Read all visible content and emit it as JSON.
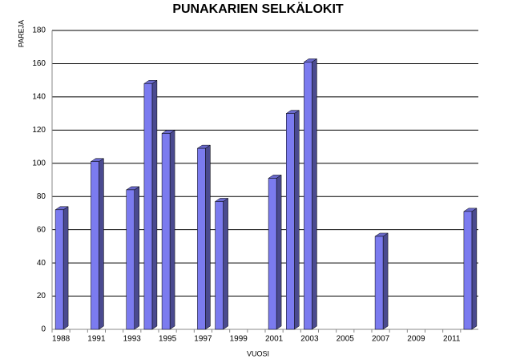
{
  "chart_data": {
    "type": "bar",
    "title": "PUNAKARIEN SELKÄLOKIT",
    "x_label": "VUOSI",
    "y_label": "PAREJA",
    "categories": [
      "1988",
      null,
      "1991",
      null,
      "1993",
      null,
      "1995",
      null,
      "1997",
      null,
      "1999",
      null,
      "2001",
      null,
      "2003",
      null,
      "2005",
      null,
      "2007",
      null,
      "2009",
      null,
      "2011",
      null
    ],
    "values": [
      72,
      null,
      101,
      null,
      84,
      148,
      118,
      null,
      109,
      77,
      null,
      null,
      91,
      130,
      161,
      null,
      null,
      null,
      56,
      null,
      null,
      null,
      null,
      71
    ],
    "color": "#7b7bef",
    "ylim": [
      0,
      180
    ],
    "yticks": [
      0,
      20,
      40,
      60,
      80,
      100,
      120,
      140,
      160,
      180
    ],
    "grid": true
  }
}
